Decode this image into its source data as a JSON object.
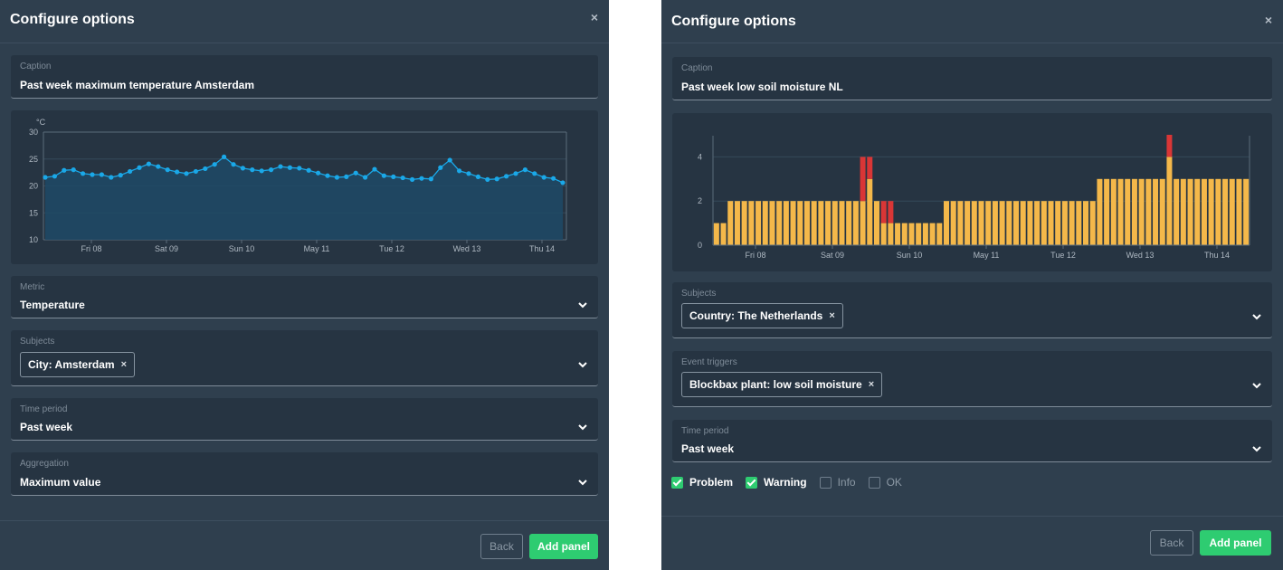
{
  "left": {
    "title": "Configure options",
    "close": "×",
    "caption": {
      "label": "Caption",
      "value": "Past week maximum temperature Amsterdam"
    },
    "metric": {
      "label": "Metric",
      "value": "Temperature"
    },
    "subjects": {
      "label": "Subjects",
      "chip": "City: Amsterdam",
      "chip_remove": "×"
    },
    "time_period": {
      "label": "Time period",
      "value": "Past week"
    },
    "aggregation": {
      "label": "Aggregation",
      "value": "Maximum value"
    },
    "back_label": "Back",
    "add_label": "Add panel"
  },
  "right": {
    "title": "Configure options",
    "close": "×",
    "caption": {
      "label": "Caption",
      "value": "Past week low soil moisture NL"
    },
    "subjects": {
      "label": "Subjects",
      "chip": "Country: The Netherlands",
      "chip_remove": "×"
    },
    "event_triggers": {
      "label": "Event triggers",
      "chip": "Blockbax plant: low soil moisture",
      "chip_remove": "×"
    },
    "time_period": {
      "label": "Time period",
      "value": "Past week"
    },
    "filters": [
      {
        "label": "Problem",
        "checked": true
      },
      {
        "label": "Warning",
        "checked": true
      },
      {
        "label": "Info",
        "checked": false
      },
      {
        "label": "OK",
        "checked": false
      }
    ],
    "back_label": "Back",
    "add_label": "Add panel"
  },
  "colors": {
    "line": "#1aa8e8",
    "area": "#1f4a66",
    "bar_warning": "#f4b84a",
    "bar_problem": "#d93636",
    "accent_green": "#2ecc71"
  },
  "chart_data": [
    {
      "type": "line",
      "ylabel": "°C",
      "ylim": [
        10,
        30
      ],
      "yticks": [
        "30",
        "25",
        "20",
        "15",
        "10"
      ],
      "xticks": [
        "Fri 08",
        "Sat 09",
        "Sun 10",
        "May 11",
        "Tue 12",
        "Wed 13",
        "Thu 14"
      ],
      "grid": true,
      "series": [
        {
          "values": [
            21.6,
            21.8,
            22.9,
            23.0,
            22.3,
            22.1,
            22.1,
            21.6,
            22.0,
            22.7,
            23.4,
            24.1,
            23.6,
            23.0,
            22.6,
            22.3,
            22.7,
            23.2,
            24.0,
            25.4,
            24.0,
            23.3,
            23.0,
            22.8,
            23.0,
            23.6,
            23.4,
            23.3,
            22.9,
            22.4,
            21.9,
            21.6,
            21.7,
            22.4,
            21.6,
            23.1,
            21.9,
            21.7,
            21.5,
            21.2,
            21.4,
            21.3,
            23.4,
            24.8,
            22.8,
            22.3,
            21.7,
            21.2,
            21.3,
            21.8,
            22.3,
            23.0,
            22.3,
            21.6,
            21.4,
            20.6
          ]
        }
      ]
    },
    {
      "type": "bar",
      "ylim": [
        0,
        5
      ],
      "yticks": [
        "4",
        "2",
        "0"
      ],
      "xticks": [
        "Fri 08",
        "Sat 09",
        "Sun 10",
        "May 11",
        "Tue 12",
        "Wed 13",
        "Thu 14"
      ],
      "grid": true,
      "stacked": true,
      "series": [
        {
          "color_key": "bar_warning",
          "values": [
            1,
            1,
            2,
            2,
            2,
            2,
            2,
            2,
            2,
            2,
            2,
            2,
            2,
            2,
            2,
            2,
            2,
            2,
            2,
            2,
            2,
            2,
            3,
            2,
            1,
            1,
            1,
            1,
            1,
            1,
            1,
            1,
            1,
            2,
            2,
            2,
            2,
            2,
            2,
            2,
            2,
            2,
            2,
            2,
            2,
            2,
            2,
            2,
            2,
            2,
            2,
            2,
            2,
            2,
            2,
            3,
            3,
            3,
            3,
            3,
            3,
            3,
            3,
            3,
            3,
            4,
            3,
            3,
            3,
            3,
            3,
            3,
            3,
            3,
            3,
            3,
            3
          ]
        },
        {
          "color_key": "bar_problem",
          "values": [
            0,
            0,
            0,
            0,
            0,
            0,
            0,
            0,
            0,
            0,
            0,
            0,
            0,
            0,
            0,
            0,
            0,
            0,
            0,
            0,
            0,
            2,
            1,
            0,
            1,
            1,
            0,
            0,
            0,
            0,
            0,
            0,
            0,
            0,
            0,
            0,
            0,
            0,
            0,
            0,
            0,
            0,
            0,
            0,
            0,
            0,
            0,
            0,
            0,
            0,
            0,
            0,
            0,
            0,
            0,
            0,
            0,
            0,
            0,
            0,
            0,
            0,
            0,
            0,
            0,
            1,
            0,
            0,
            0,
            0,
            0,
            0,
            0,
            0,
            0,
            0,
            0
          ]
        }
      ]
    }
  ]
}
